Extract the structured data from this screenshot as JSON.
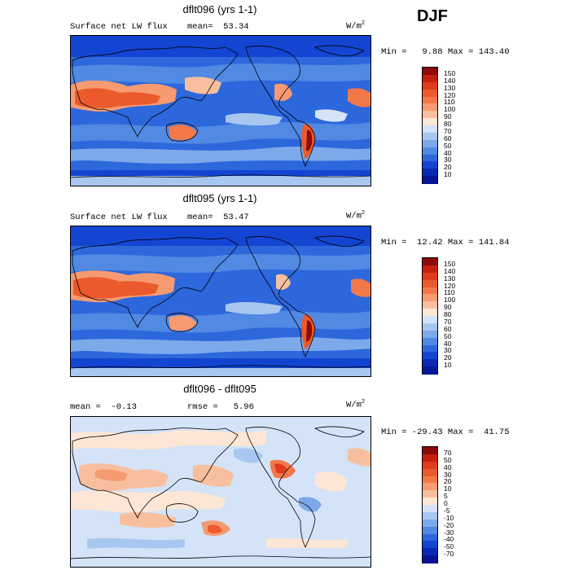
{
  "season": "DJF",
  "panels": [
    {
      "title": "dflt096 (yrs 1-1)",
      "left_label": "Surface net LW flux",
      "mean_text": "mean=  53.34",
      "units": "W/m",
      "units_exp": "2",
      "minmax_text": "Min =   9.88 Max = 143.40",
      "colorbar_labels": [
        "150",
        "140",
        "130",
        "120",
        "110",
        "100",
        "90",
        "80",
        "70",
        "60",
        "50",
        "40",
        "30",
        "20",
        "10"
      ],
      "colorbar_colors": [
        "#8b0a0a",
        "#c51f10",
        "#de3c1c",
        "#eb5a2c",
        "#f2784a",
        "#f69a72",
        "#f8bf9e",
        "#fde6d6",
        "#d4e3f7",
        "#a8c7f0",
        "#7ca9ea",
        "#5189e3",
        "#2d67dc",
        "#1445d2",
        "#0a28b4",
        "#061594"
      ]
    },
    {
      "title": "dflt095 (yrs 1-1)",
      "left_label": "Surface net LW flux",
      "mean_text": "mean=  53.47",
      "units": "W/m",
      "units_exp": "2",
      "minmax_text": "Min =  12.42 Max = 141.84",
      "colorbar_labels": [
        "150",
        "140",
        "130",
        "120",
        "110",
        "100",
        "90",
        "80",
        "70",
        "60",
        "50",
        "40",
        "30",
        "20",
        "10"
      ],
      "colorbar_colors": [
        "#8b0a0a",
        "#c51f10",
        "#de3c1c",
        "#eb5a2c",
        "#f2784a",
        "#f69a72",
        "#f8bf9e",
        "#fde6d6",
        "#d4e3f7",
        "#a8c7f0",
        "#7ca9ea",
        "#5189e3",
        "#2d67dc",
        "#1445d2",
        "#0a28b4",
        "#061594"
      ]
    },
    {
      "title": "dflt096 - dflt095",
      "left_label": "mean =  -0.13",
      "mean_text": "rmse =   5.96",
      "units": "W/m",
      "units_exp": "2",
      "minmax_text": "Min = -29.43 Max =  41.75",
      "colorbar_labels": [
        "70",
        "50",
        "40",
        "30",
        "20",
        "10",
        "5",
        "0",
        "-5",
        "-10",
        "-20",
        "-30",
        "-40",
        "-50",
        "-70"
      ],
      "colorbar_colors": [
        "#8b0a0a",
        "#c51f10",
        "#de3c1c",
        "#eb5a2c",
        "#f2784a",
        "#f69a72",
        "#f8bf9e",
        "#fde6d6",
        "#d4e3f7",
        "#a8c7f0",
        "#7ca9ea",
        "#5189e3",
        "#2d67dc",
        "#1445d2",
        "#0a28b4",
        "#061594"
      ]
    }
  ]
}
